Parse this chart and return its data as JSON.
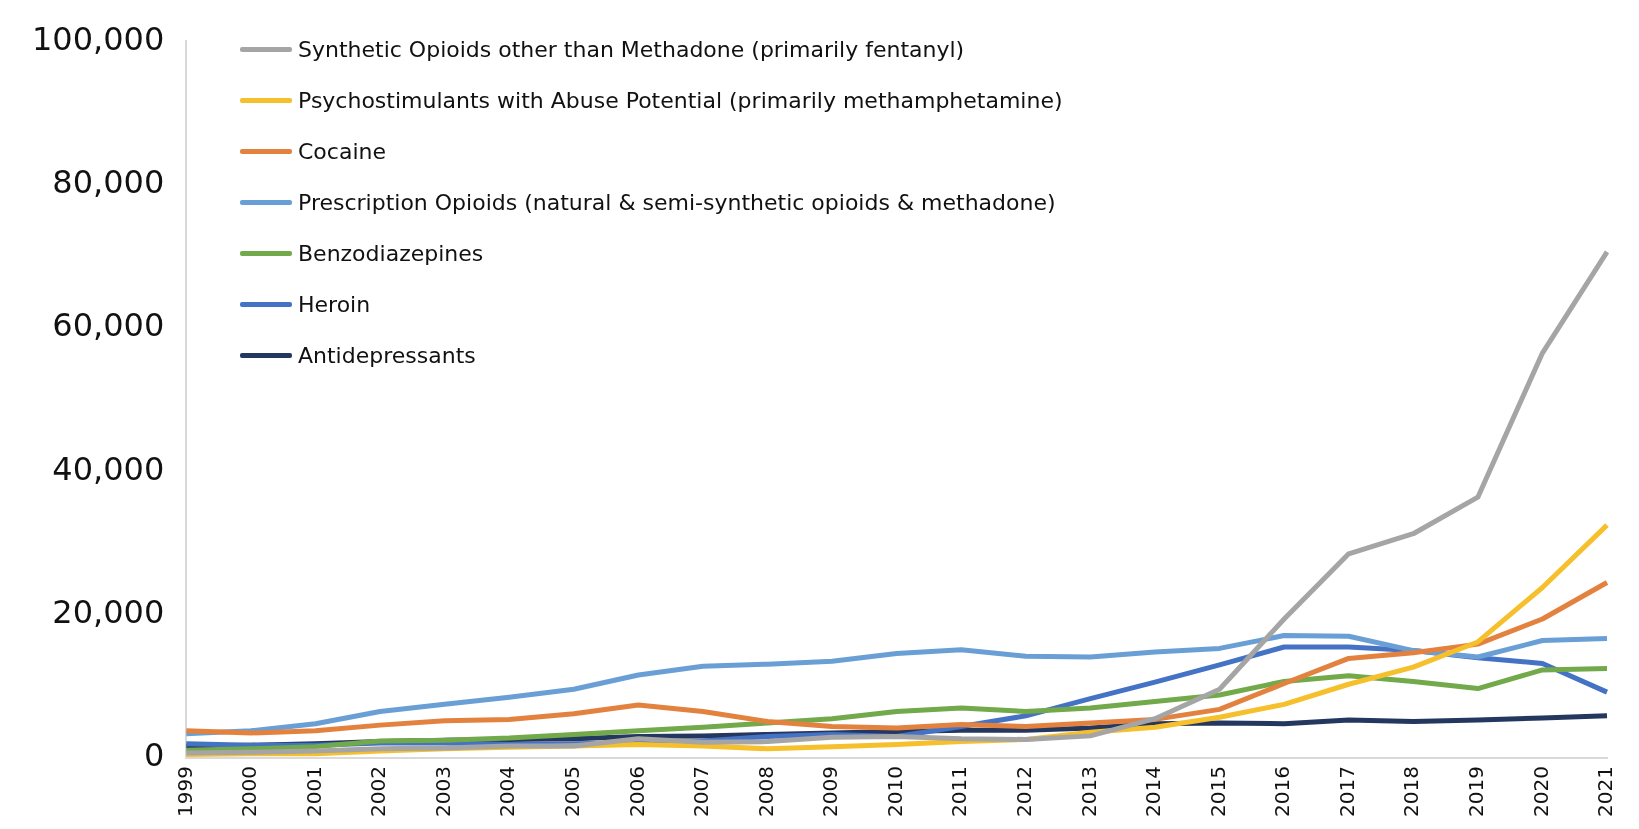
{
  "chart_data": {
    "type": "line",
    "categories": [
      "1999",
      "2000",
      "2001",
      "2002",
      "2003",
      "2004",
      "2005",
      "2006",
      "2007",
      "2008",
      "2009",
      "2010",
      "2011",
      "2012",
      "2013",
      "2014",
      "2015",
      "2016",
      "2017",
      "2018",
      "2019",
      "2020",
      "2021"
    ],
    "series": [
      {
        "name": "Synthetic Opioids other than Methadone (primarily fentanyl)",
        "color": "#a5a5a5",
        "values": [
          700,
          800,
          1000,
          1300,
          1400,
          1700,
          1700,
          2700,
          2200,
          2300,
          2900,
          3000,
          2700,
          2600,
          3100,
          5500,
          9600,
          19400,
          28500,
          31300,
          36400,
          56500,
          70600
        ]
      },
      {
        "name": "Psychostimulants with Abuse Potential (primarily methamphetamine)",
        "color": "#f5c02c",
        "values": [
          500,
          600,
          600,
          1000,
          1300,
          1500,
          1700,
          1900,
          1700,
          1300,
          1600,
          1900,
          2300,
          2600,
          3600,
          4300,
          5700,
          7500,
          10300,
          12700,
          16200,
          23800,
          32500
        ]
      },
      {
        "name": "Cocaine",
        "color": "#e3823f",
        "values": [
          3800,
          3500,
          3800,
          4600,
          5200,
          5400,
          6200,
          7400,
          6500,
          5100,
          4400,
          4200,
          4700,
          4400,
          4900,
          5400,
          6800,
          10400,
          13900,
          14700,
          15900,
          19400,
          24500
        ]
      },
      {
        "name": "Prescription Opioids (natural & semi-synthetic opioids & methadone)",
        "color": "#6a9fd6",
        "values": [
          3400,
          3800,
          4800,
          6500,
          7500,
          8500,
          9600,
          11600,
          12800,
          13100,
          13500,
          14600,
          15100,
          14200,
          14100,
          14800,
          15300,
          17100,
          17000,
          15000,
          14100,
          16400,
          16700
        ]
      },
      {
        "name": "Benzodiazepines",
        "color": "#72a94a",
        "values": [
          1100,
          1300,
          1600,
          2400,
          2500,
          2800,
          3300,
          3800,
          4300,
          4900,
          5500,
          6500,
          7000,
          6500,
          7000,
          7900,
          8800,
          10700,
          11500,
          10700,
          9700,
          12300,
          12500
        ]
      },
      {
        "name": "Heroin",
        "color": "#4472c4",
        "values": [
          2000,
          1800,
          1800,
          2100,
          2100,
          1900,
          2000,
          2100,
          2400,
          3000,
          3300,
          3000,
          4400,
          5900,
          8300,
          10600,
          13000,
          15500,
          15500,
          15000,
          14000,
          13200,
          9200
        ]
      },
      {
        "name": "Antidepressants",
        "color": "#24375f",
        "values": [
          1700,
          1800,
          2000,
          2300,
          2500,
          2600,
          2700,
          3000,
          3100,
          3300,
          3500,
          3700,
          3900,
          3900,
          4200,
          4800,
          4900,
          4800,
          5300,
          5100,
          5300,
          5600,
          5900
        ]
      }
    ],
    "ylim": [
      0,
      100000
    ],
    "yticks": [
      {
        "value": 0,
        "label": "0"
      },
      {
        "value": 20000,
        "label": "20,000"
      },
      {
        "value": 40000,
        "label": "40,000"
      },
      {
        "value": 60000,
        "label": "60,000"
      },
      {
        "value": 80000,
        "label": "80,000"
      },
      {
        "value": 100000,
        "label": "100,000"
      }
    ],
    "grid": false,
    "legend": "top left",
    "marker": "none",
    "line_style": "solid"
  }
}
